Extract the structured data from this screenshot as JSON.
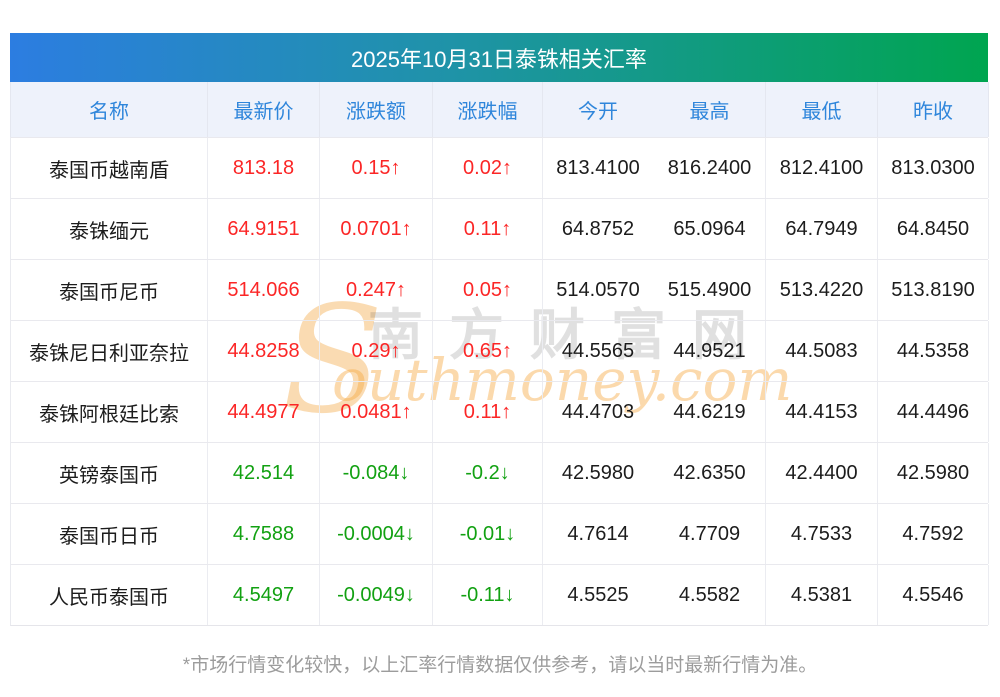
{
  "title": "2025年10月31日泰铢相关汇率",
  "columns": [
    "名称",
    "最新价",
    "涨跌额",
    "涨跌幅",
    "今开",
    "最高",
    "最低",
    "昨收"
  ],
  "rows": [
    {
      "name": "泰国币越南盾",
      "last": "813.18",
      "change": "0.15↑",
      "pct": "0.02↑",
      "open": "813.4100",
      "high": "816.2400",
      "low": "812.4100",
      "prev": "813.0300",
      "trend": "up"
    },
    {
      "name": "泰铢缅元",
      "last": "64.9151",
      "change": "0.0701↑",
      "pct": "0.11↑",
      "open": "64.8752",
      "high": "65.0964",
      "low": "64.7949",
      "prev": "64.8450",
      "trend": "up"
    },
    {
      "name": "泰国币尼币",
      "last": "514.066",
      "change": "0.247↑",
      "pct": "0.05↑",
      "open": "514.0570",
      "high": "515.4900",
      "low": "513.4220",
      "prev": "513.8190",
      "trend": "up"
    },
    {
      "name": "泰铢尼日利亚奈拉",
      "last": "44.8258",
      "change": "0.29↑",
      "pct": "0.65↑",
      "open": "44.5565",
      "high": "44.9521",
      "low": "44.5083",
      "prev": "44.5358",
      "trend": "up"
    },
    {
      "name": "泰铢阿根廷比索",
      "last": "44.4977",
      "change": "0.0481↑",
      "pct": "0.11↑",
      "open": "44.4703",
      "high": "44.6219",
      "low": "44.4153",
      "prev": "44.4496",
      "trend": "up"
    },
    {
      "name": "英镑泰国币",
      "last": "42.514",
      "change": "-0.084↓",
      "pct": "-0.2↓",
      "open": "42.5980",
      "high": "42.6350",
      "low": "42.4400",
      "prev": "42.5980",
      "trend": "down"
    },
    {
      "name": "泰国币日币",
      "last": "4.7588",
      "change": "-0.0004↓",
      "pct": "-0.01↓",
      "open": "4.7614",
      "high": "4.7709",
      "low": "4.7533",
      "prev": "4.7592",
      "trend": "down"
    },
    {
      "name": "人民币泰国币",
      "last": "4.5497",
      "change": "-0.0049↓",
      "pct": "-0.11↓",
      "open": "4.5525",
      "high": "4.5582",
      "low": "4.5381",
      "prev": "4.5546",
      "trend": "down"
    }
  ],
  "footer": "*市场行情变化较快，以上汇率行情数据仅供参考，请以当时最新行情为准。",
  "watermark": {
    "s": "S",
    "cn": "南方财富网",
    "en": "outhmoney.com"
  },
  "colors": {
    "up": "#fb2626",
    "down": "#12a112",
    "title_gradient_start": "#2c7de1",
    "title_gradient_end": "#00a550",
    "header_text": "#2f86db",
    "header_bg": "#eef2fb"
  }
}
